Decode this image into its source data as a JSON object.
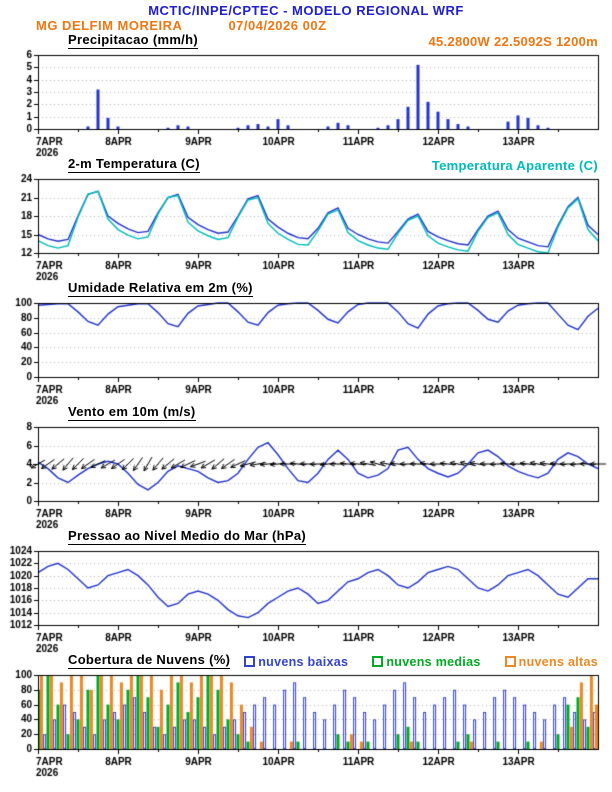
{
  "header": {
    "title": "MCTIC/INPE/CPTEC - MODELO REGIONAL WRF",
    "station": "MG DELFIM MOREIRA",
    "run": "07/04/2026 00Z",
    "location": "45.2800W 22.5092S 1200m",
    "colors": {
      "title": "#2020cc",
      "station": "#ee7711"
    }
  },
  "axis": {
    "x_unit": "hours since 07APR2026 00Z",
    "x_hours_total": 168,
    "step_hours": 3,
    "day_labels": [
      "7APR",
      "8APR",
      "9APR",
      "10APR",
      "11APR",
      "12APR",
      "13APR"
    ],
    "year_label": "2026",
    "grid": "dotted-horizontal"
  },
  "chart_data": [
    {
      "type": "bar",
      "title": "Precipitacao (mm/h)",
      "ylim": [
        0,
        6
      ],
      "yticks": [
        0,
        1,
        2,
        3,
        4,
        5,
        6
      ],
      "series": [
        {
          "name": "precipitacao",
          "color": "#2233cc",
          "values": [
            0,
            0,
            0,
            0,
            0,
            0.2,
            3.2,
            0.9,
            0.2,
            0,
            0,
            0,
            0,
            0.1,
            0.3,
            0.2,
            0,
            0,
            0,
            0,
            0.1,
            0.3,
            0.4,
            0.2,
            0.8,
            0.3,
            0,
            0,
            0,
            0.2,
            0.5,
            0.3,
            0,
            0,
            0.1,
            0.3,
            0.8,
            1.8,
            5.2,
            2.2,
            1.4,
            0.8,
            0.4,
            0.2,
            0,
            0,
            0,
            0.6,
            1.1,
            0.9,
            0.3,
            0.1,
            0,
            0,
            0,
            0,
            0
          ]
        }
      ]
    },
    {
      "type": "line",
      "title": "2-m Temperatura (C)",
      "ylim": [
        12,
        24
      ],
      "yticks": [
        12,
        15,
        18,
        21,
        24
      ],
      "series": [
        {
          "name": "2-m Temperatura (C)",
          "color": "#2233cc",
          "values": [
            15.0,
            14.3,
            13.9,
            14.2,
            18.0,
            21.5,
            22.0,
            18.0,
            16.8,
            15.9,
            15.3,
            15.5,
            18.5,
            21.0,
            21.5,
            17.8,
            16.6,
            15.8,
            15.2,
            15.4,
            18.0,
            20.8,
            21.3,
            17.5,
            16.2,
            15.2,
            14.5,
            14.3,
            16.0,
            18.5,
            19.3,
            16.0,
            15.0,
            14.3,
            13.8,
            13.6,
            15.5,
            17.5,
            18.3,
            15.5,
            14.6,
            14.0,
            13.5,
            13.3,
            15.8,
            18.0,
            18.8,
            15.8,
            14.4,
            13.8,
            13.2,
            13.0,
            16.5,
            19.5,
            21.0,
            16.5,
            15.0
          ]
        },
        {
          "name": "Temperatura Aparente (C)",
          "color": "#00bbbb",
          "values": [
            14.0,
            13.2,
            12.8,
            13.2,
            17.8,
            21.5,
            22.0,
            17.5,
            15.8,
            14.9,
            14.3,
            14.6,
            18.3,
            21.0,
            21.3,
            17.0,
            15.6,
            14.8,
            14.2,
            14.5,
            17.8,
            20.6,
            21.0,
            16.8,
            15.2,
            14.2,
            13.4,
            13.3,
            15.6,
            18.3,
            19.0,
            15.3,
            14.0,
            13.3,
            12.8,
            12.6,
            15.2,
            17.3,
            18.0,
            14.8,
            13.6,
            13.0,
            12.5,
            12.3,
            15.5,
            17.8,
            18.5,
            15.0,
            13.4,
            12.8,
            12.2,
            12.0,
            16.2,
            19.3,
            20.8,
            15.8,
            14.0
          ]
        }
      ]
    },
    {
      "type": "line",
      "title": "Umidade Relativa em 2m (%)",
      "ylim": [
        0,
        100
      ],
      "yticks": [
        0,
        20,
        40,
        60,
        80,
        100
      ],
      "series": [
        {
          "name": "umidade relativa",
          "color": "#2233cc",
          "values": [
            97,
            98,
            99,
            99,
            88,
            75,
            70,
            85,
            95,
            97,
            99,
            99,
            87,
            72,
            68,
            86,
            96,
            98,
            100,
            100,
            88,
            74,
            70,
            87,
            97,
            99,
            100,
            100,
            90,
            78,
            73,
            88,
            98,
            100,
            100,
            100,
            88,
            72,
            66,
            85,
            96,
            99,
            100,
            100,
            90,
            78,
            74,
            89,
            97,
            99,
            100,
            100,
            85,
            70,
            64,
            82,
            93
          ]
        }
      ]
    },
    {
      "type": "line",
      "title": "Vento em 10m (m/s)",
      "ylim": [
        0,
        8
      ],
      "yticks": [
        0,
        2,
        4,
        6,
        8
      ],
      "series": [
        {
          "name": "velocidade do vento",
          "color": "#2233cc",
          "values": [
            4.2,
            3.5,
            2.5,
            2.0,
            2.8,
            3.5,
            4.0,
            4.3,
            4.0,
            3.0,
            1.8,
            1.2,
            2.0,
            3.2,
            3.8,
            3.5,
            3.2,
            2.5,
            2.0,
            2.2,
            3.0,
            4.5,
            5.8,
            6.3,
            5.0,
            3.5,
            2.2,
            2.0,
            3.0,
            4.5,
            5.5,
            4.5,
            3.0,
            2.5,
            2.8,
            3.5,
            5.5,
            5.8,
            4.5,
            3.5,
            3.0,
            2.6,
            3.0,
            4.0,
            5.2,
            5.5,
            4.8,
            3.8,
            3.2,
            2.8,
            2.5,
            3.0,
            4.5,
            5.2,
            4.8,
            4.0,
            3.5
          ]
        }
      ],
      "barbs": {
        "color": "#000000",
        "y_value": 4,
        "dir_deg": [
          210,
          215,
          220,
          230,
          225,
          215,
          205,
          210,
          215,
          225,
          235,
          240,
          230,
          220,
          210,
          205,
          200,
          210,
          220,
          215,
          205,
          195,
          190,
          185,
          185,
          180,
          175,
          178,
          182,
          185,
          180,
          175,
          175,
          170,
          165,
          170,
          175,
          180,
          178,
          172,
          180,
          175,
          170,
          168,
          172,
          178,
          182,
          176,
          178,
          174,
          170,
          172,
          176,
          180,
          184,
          178,
          180
        ]
      }
    },
    {
      "type": "line",
      "title": "Pressao ao Nivel Medio do Mar (hPa)",
      "ylim": [
        1012,
        1024
      ],
      "yticks": [
        1012,
        1014,
        1016,
        1018,
        1020,
        1022,
        1024
      ],
      "series": [
        {
          "name": "pressao",
          "color": "#2233cc",
          "values": [
            1020.5,
            1021.5,
            1022.0,
            1021.0,
            1019.5,
            1018.0,
            1018.5,
            1020.0,
            1020.5,
            1021.0,
            1020.0,
            1018.5,
            1016.5,
            1015.0,
            1015.5,
            1017.0,
            1017.5,
            1017.0,
            1016.0,
            1014.5,
            1013.5,
            1013.2,
            1014.0,
            1015.5,
            1016.5,
            1017.5,
            1018.0,
            1017.0,
            1015.5,
            1016.0,
            1017.5,
            1019.0,
            1019.5,
            1020.5,
            1021.0,
            1020.0,
            1018.5,
            1018.0,
            1019.0,
            1020.5,
            1021.0,
            1021.5,
            1021.0,
            1019.5,
            1018.0,
            1017.5,
            1018.5,
            1020.0,
            1020.5,
            1021.0,
            1020.0,
            1018.5,
            1017.0,
            1016.5,
            1018.0,
            1019.5,
            1019.5
          ]
        }
      ]
    },
    {
      "type": "bar",
      "title": "Cobertura de Nuvens (%)",
      "ylim": [
        0,
        100
      ],
      "yticks": [
        0,
        20,
        40,
        60,
        80,
        100
      ],
      "legend": [
        {
          "label": "nuvens baixas",
          "color": "#3344cc"
        },
        {
          "label": "nuvens medias",
          "color": "#00aa22"
        },
        {
          "label": "nuvens altas",
          "color": "#ee8822"
        }
      ],
      "series": [
        {
          "name": "nuvens baixas",
          "color": "#3344cc",
          "style": "hollow",
          "values": [
            30,
            20,
            40,
            60,
            50,
            30,
            20,
            40,
            50,
            60,
            70,
            50,
            30,
            20,
            30,
            40,
            40,
            30,
            20,
            30,
            40,
            50,
            60,
            70,
            60,
            80,
            90,
            70,
            50,
            40,
            60,
            80,
            70,
            50,
            40,
            60,
            80,
            90,
            70,
            50,
            60,
            70,
            80,
            60,
            40,
            50,
            70,
            80,
            70,
            60,
            50,
            40,
            60,
            70,
            50,
            40,
            50
          ]
        },
        {
          "name": "nuvens medias",
          "color": "#00aa22",
          "style": "solid",
          "values": [
            80,
            100,
            60,
            20,
            40,
            80,
            100,
            60,
            40,
            80,
            100,
            70,
            30,
            60,
            90,
            50,
            70,
            100,
            80,
            40,
            20,
            10,
            0,
            0,
            0,
            0,
            10,
            0,
            0,
            0,
            20,
            10,
            0,
            10,
            0,
            0,
            20,
            30,
            10,
            0,
            0,
            0,
            10,
            20,
            0,
            0,
            10,
            0,
            0,
            10,
            0,
            0,
            20,
            60,
            70,
            30,
            20
          ]
        },
        {
          "name": "nuvens altas",
          "color": "#ee8822",
          "style": "solid",
          "values": [
            100,
            100,
            90,
            100,
            100,
            80,
            100,
            100,
            90,
            100,
            100,
            100,
            80,
            100,
            100,
            90,
            100,
            100,
            100,
            90,
            60,
            30,
            10,
            0,
            0,
            10,
            0,
            0,
            0,
            0,
            0,
            20,
            10,
            0,
            0,
            0,
            0,
            10,
            0,
            0,
            0,
            0,
            0,
            10,
            0,
            0,
            0,
            0,
            0,
            0,
            10,
            0,
            0,
            30,
            90,
            100,
            60
          ]
        }
      ]
    }
  ]
}
